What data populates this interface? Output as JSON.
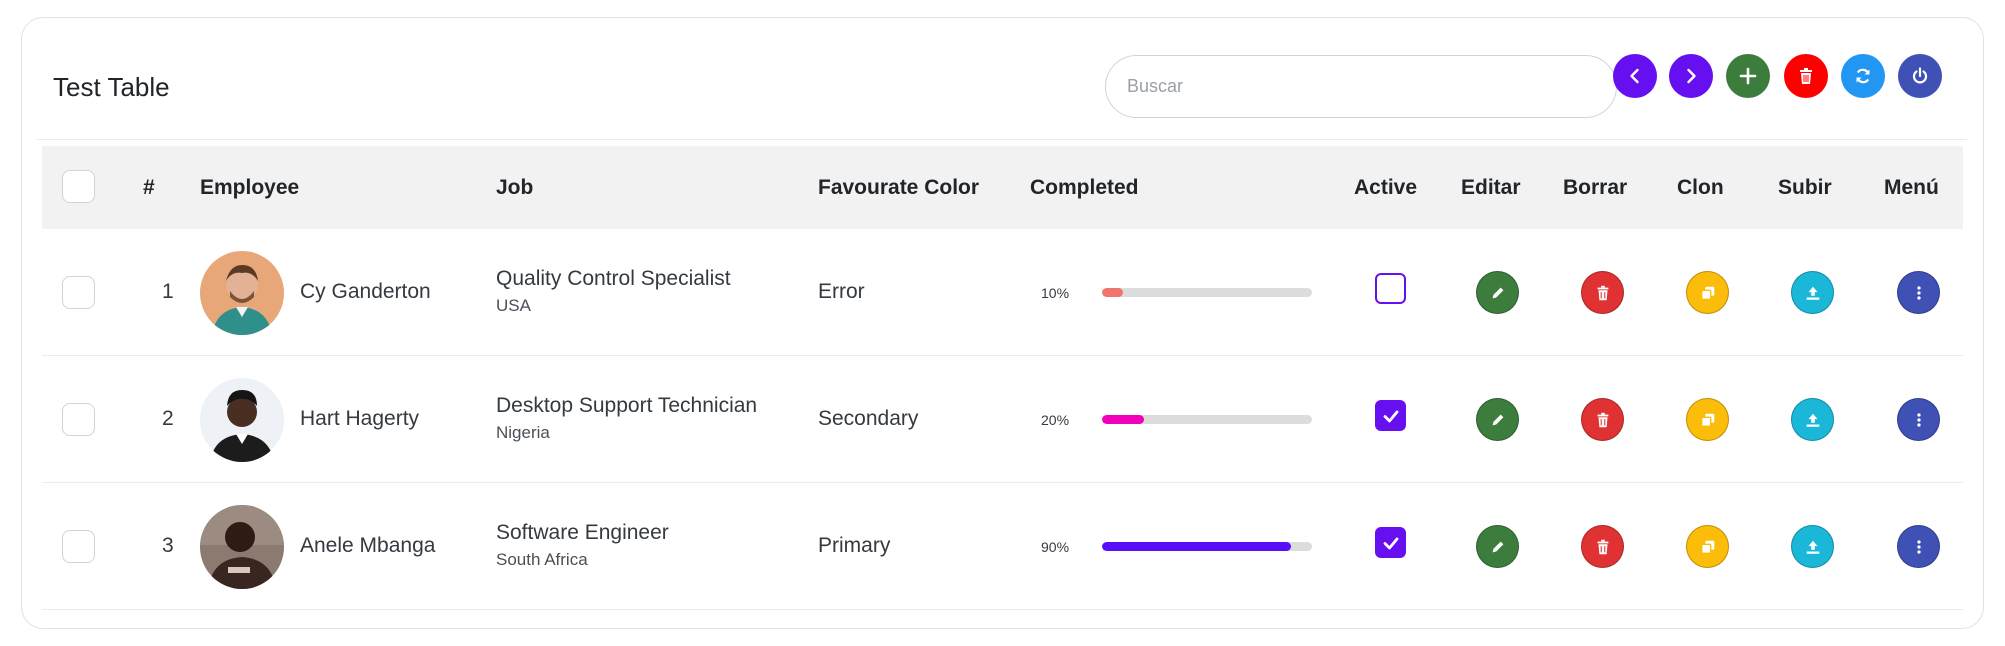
{
  "table": {
    "title": "Test Table",
    "search_placeholder": "Buscar",
    "header_buttons": [
      {
        "name": "prev-page",
        "icon": "chevron-left-icon",
        "color": "#6610f2"
      },
      {
        "name": "next-page",
        "icon": "chevron-right-icon",
        "color": "#6610f2"
      },
      {
        "name": "add",
        "icon": "plus-icon",
        "color": "#3c7d3e"
      },
      {
        "name": "delete",
        "icon": "trash-icon",
        "color": "#ff0000"
      },
      {
        "name": "refresh",
        "icon": "refresh-icon",
        "color": "#2196f3"
      },
      {
        "name": "power",
        "icon": "power-icon",
        "color": "#3f51b5"
      }
    ],
    "columns": {
      "num": "#",
      "employee": "Employee",
      "job": "Job",
      "color": "Favourate Color",
      "completed": "Completed",
      "active": "Active",
      "edit": "Editar",
      "delete": "Borrar",
      "clone": "Clon",
      "upload": "Subir",
      "menu": "Menú"
    },
    "rows": [
      {
        "num": "1",
        "employee": "Cy Ganderton",
        "job": "Quality Control Specialist",
        "country": "USA",
        "color": "Error",
        "completed_label": "10%",
        "completed": 10,
        "bar_color": "#f0766b",
        "active": false
      },
      {
        "num": "2",
        "employee": "Hart Hagerty",
        "job": "Desktop Support Technician",
        "country": "Nigeria",
        "color": "Secondary",
        "completed_label": "20%",
        "completed": 20,
        "bar_color": "#f000b8",
        "active": true
      },
      {
        "num": "3",
        "employee": "Anele Mbanga",
        "job": "Software Engineer",
        "country": "South Africa",
        "color": "Primary",
        "completed_label": "90%",
        "completed": 90,
        "bar_color": "#570df8",
        "active": true
      }
    ],
    "row_action_colors": {
      "edit": "#3c7d3e",
      "delete": "#e03232",
      "clone": "#fbbd09",
      "upload": "#1ab7d9",
      "menu": "#3f51b5"
    }
  }
}
